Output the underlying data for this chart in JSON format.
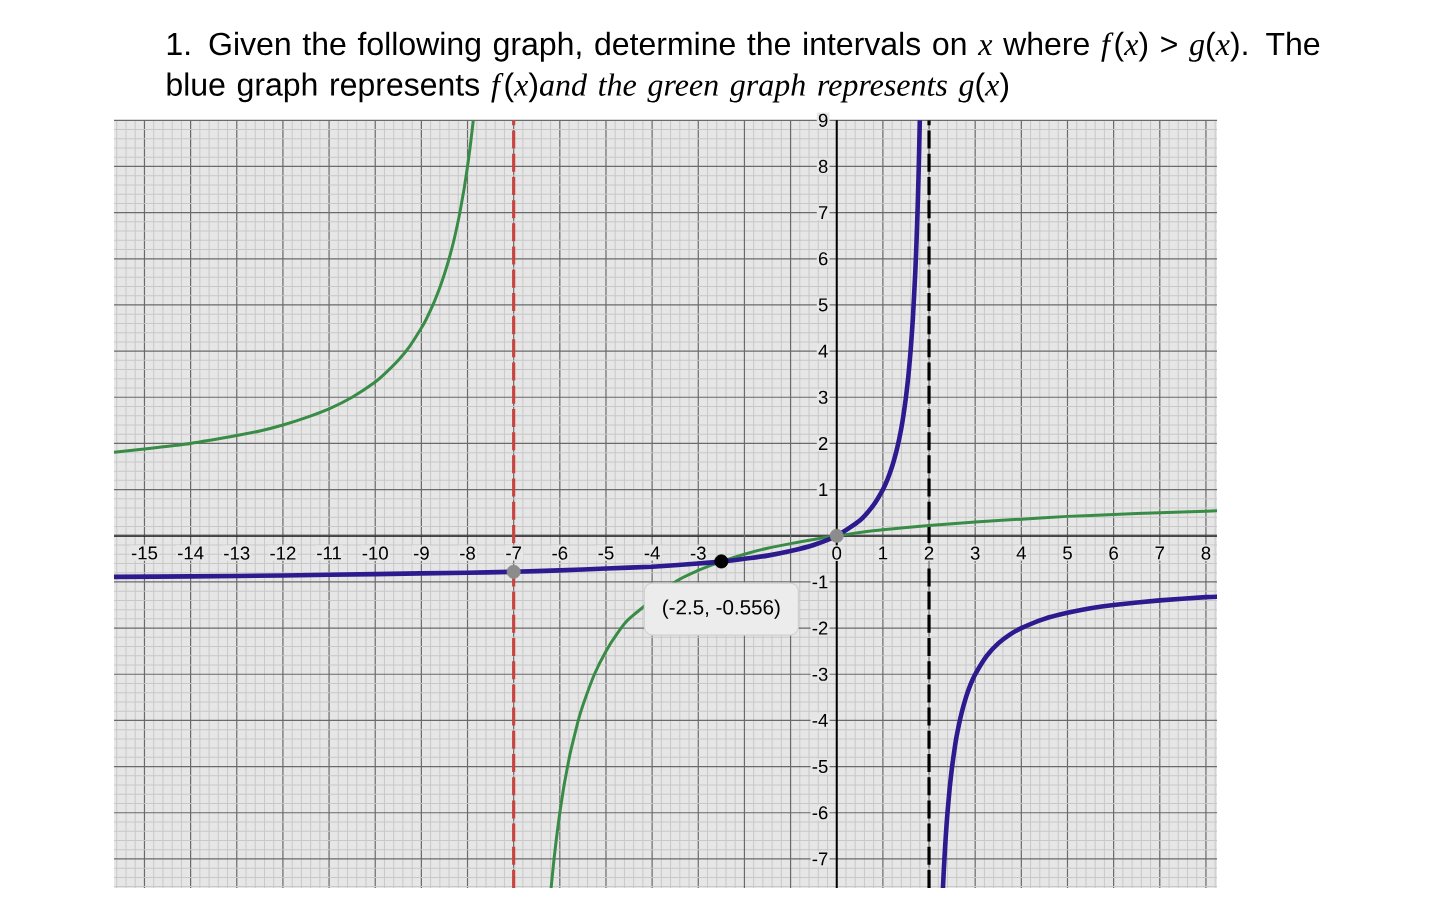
{
  "chart_data": {
    "type": "line",
    "title": "1. Given the following graph, determine the intervals on *x* where *f*(*x*) > *g*(*x*). The blue graph represents *f*(*x*)*and the green graph represents g*(*x*)",
    "xlim": [
      -15.66,
      8.24
    ],
    "ylim": [
      -7.63,
      9
    ],
    "xticks": [
      -15,
      -14,
      -13,
      -12,
      -11,
      -10,
      -9,
      -8,
      -7,
      -6,
      -5,
      -4,
      -3,
      {
        "value": -2,
        "label": null
      },
      {
        "value": -1,
        "label": null
      },
      0,
      1,
      2,
      3,
      4,
      5,
      6,
      7,
      8
    ],
    "yticks": [
      -7,
      -6,
      -5,
      -4,
      -3,
      -2,
      -1,
      {
        "value": 0,
        "label": null
      },
      1,
      2,
      3,
      4,
      5,
      6,
      7,
      8,
      9
    ],
    "grid": true,
    "series": [
      {
        "type": "line",
        "color": "#388c46",
        "x": [
          -15.66,
          -15,
          -14,
          -13,
          -12.5,
          -12,
          -11.5,
          -11,
          -10.5,
          -10,
          -9.75,
          -9.5,
          -9.25,
          -9,
          -8.9,
          -8.75,
          -8.6,
          -8.5,
          -8.4,
          -8.3,
          -8.2,
          -8.15,
          -8.07,
          -8,
          -7.97,
          -7.93,
          -7.875,
          -7,
          -6.188,
          -6.14,
          -6.1,
          -6.05,
          -6,
          -5.95,
          -5.9,
          -5.8,
          -5.75,
          -5.6,
          -5.5,
          -5.25,
          -5,
          -4.75,
          -4.5,
          -3.5,
          -3,
          -2.5,
          -2,
          -1.5,
          -1,
          -0.5,
          0,
          0.5,
          1,
          2,
          3,
          4,
          5,
          6,
          7,
          8,
          8.24
        ],
        "values": [
          1.81,
          1.88,
          2,
          2.17,
          2.27,
          2.4,
          2.56,
          2.75,
          3,
          3.33,
          3.55,
          3.8,
          4.11,
          4.5,
          4.68,
          5,
          5.38,
          5.67,
          6,
          6.38,
          6.83,
          7.09,
          7.54,
          8,
          8.22,
          8.53,
          9,
          null,
          -7.62,
          -7.14,
          -6.78,
          -6.37,
          -6,
          -5.67,
          -5.36,
          -4.83,
          -4.6,
          -4,
          -3.67,
          -3,
          -2.5,
          -2.11,
          -1.8,
          -1,
          -0.75,
          -0.56,
          -0.4,
          -0.27,
          -0.17,
          -0.08,
          0,
          0.07,
          0.13,
          0.22,
          0.3,
          0.36,
          0.42,
          0.46,
          0.5,
          0.53,
          0.54
        ]
      },
      {
        "type": "line",
        "color": "#2e1a8f",
        "x": [
          -15.66,
          -14,
          -12,
          -10,
          -8,
          -7,
          -6,
          -5,
          -4,
          -3,
          -2.5,
          -2,
          -1.5,
          -1,
          -0.5,
          0,
          0.5,
          0.8,
          1,
          1.1,
          1.2,
          1.25,
          1.3,
          1.35,
          1.4,
          1.45,
          1.5,
          1.55,
          1.6,
          1.65,
          1.7,
          1.72,
          1.74,
          1.76,
          1.78,
          1.8,
          2,
          2.302,
          2.32,
          2.35,
          2.38,
          2.4,
          2.45,
          2.5,
          2.55,
          2.6,
          2.7,
          2.8,
          2.9,
          3,
          3.25,
          3.5,
          3.75,
          4,
          4.5,
          5,
          5.5,
          6,
          7,
          8,
          8.24
        ],
        "values": [
          -0.89,
          -0.88,
          -0.86,
          -0.83,
          -0.8,
          -0.78,
          -0.75,
          -0.71,
          -0.67,
          -0.6,
          -0.56,
          -0.5,
          -0.43,
          -0.33,
          -0.2,
          0,
          0.33,
          0.67,
          1,
          1.22,
          1.5,
          1.67,
          1.86,
          2.08,
          2.33,
          2.64,
          3,
          3.44,
          4,
          4.71,
          5.67,
          6.14,
          6.69,
          7.33,
          8.09,
          9,
          null,
          -7.62,
          -7.25,
          -6.71,
          -6.26,
          -6,
          -5.44,
          -5,
          -4.64,
          -4.33,
          -3.86,
          -3.5,
          -3.22,
          -3,
          -2.6,
          -2.33,
          -2.14,
          -2,
          -1.8,
          -1.67,
          -1.57,
          -1.5,
          -1.4,
          -1.33,
          -1.32
        ]
      },
      {
        "type": "scatter",
        "marker": "circle",
        "colors": [
          "#8c8c8c",
          "#000000",
          "#8c8c8c"
        ],
        "x": [
          -7,
          -2.5,
          0
        ],
        "values": [
          -0.78,
          -0.556,
          0
        ]
      }
    ],
    "ref_lines": [
      {
        "axis": "x",
        "value": -7,
        "color": "#c74440",
        "line_style": "dashed"
      },
      {
        "axis": "x",
        "value": 2,
        "color": "#000000",
        "line_style": "dashed"
      }
    ],
    "annotations": [
      {
        "text": "(-2.5, -0.556)",
        "x": -2.5,
        "y": -0.556
      }
    ]
  }
}
